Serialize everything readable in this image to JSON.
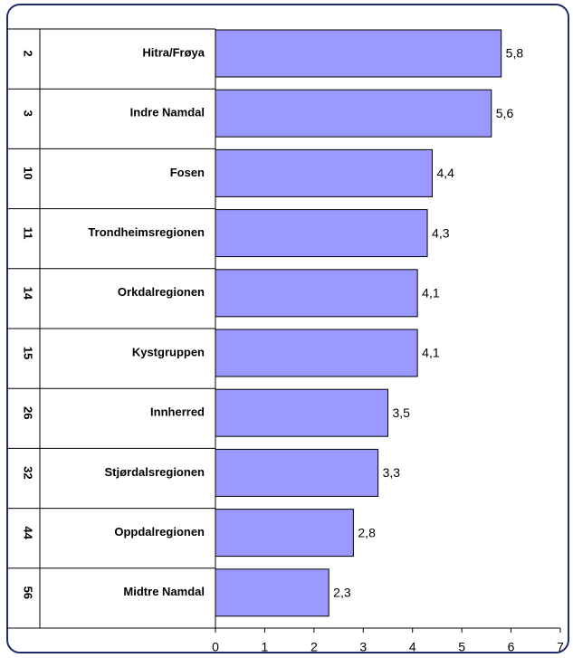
{
  "chart_data": {
    "type": "bar",
    "orientation": "horizontal",
    "ranks": [
      "2",
      "3",
      "10",
      "11",
      "14",
      "15",
      "26",
      "32",
      "44",
      "56"
    ],
    "categories": [
      "Hitra/Frøya",
      "Indre Namdal",
      "Fosen",
      "Trondheimsregionen",
      "Orkdalregionen",
      "Kystgruppen",
      "Innherred",
      "Stjørdalsregionen",
      "Oppdalregionen",
      "Midtre Namdal"
    ],
    "values": [
      5.8,
      5.6,
      4.4,
      4.3,
      4.1,
      4.1,
      3.5,
      3.3,
      2.8,
      2.3
    ],
    "value_labels": [
      "5,8",
      "5,6",
      "4,4",
      "4,3",
      "4,1",
      "4,1",
      "3,5",
      "3,3",
      "2,8",
      "2,3"
    ],
    "color": "#9999ff",
    "xlim": [
      0,
      7
    ],
    "xticks": [
      0,
      1,
      2,
      3,
      4,
      5,
      6,
      7
    ]
  }
}
